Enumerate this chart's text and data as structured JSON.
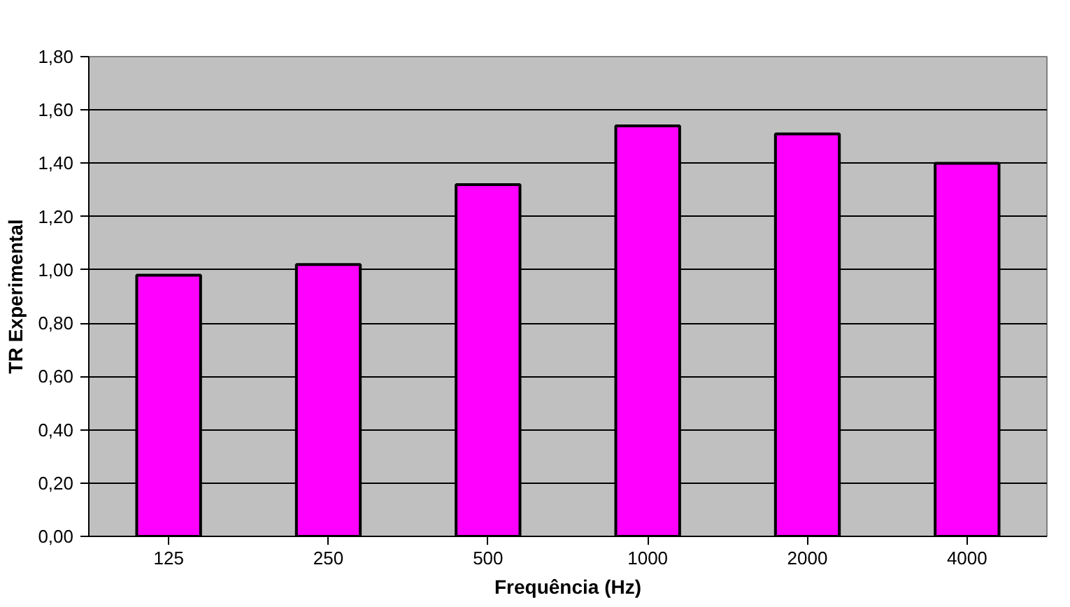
{
  "chart_data": {
    "type": "bar",
    "xlabel": "Frequência (Hz)",
    "ylabel": "TR Experimental",
    "categories": [
      "125",
      "250",
      "500",
      "1000",
      "2000",
      "4000"
    ],
    "values": [
      0.98,
      1.02,
      1.32,
      1.54,
      1.51,
      1.4
    ],
    "color": "#ff00ff",
    "ylim": [
      0,
      1.8
    ],
    "yticks": [
      {
        "value": 0,
        "label": "0,00"
      },
      {
        "value": 0.2,
        "label": "0,20"
      },
      {
        "value": 0.4,
        "label": "0,40"
      },
      {
        "value": 0.6,
        "label": "0,60"
      },
      {
        "value": 0.8,
        "label": "0,80"
      },
      {
        "value": 1.0,
        "label": "1,00"
      },
      {
        "value": 1.2,
        "label": "1,20"
      },
      {
        "value": 1.4,
        "label": "1,40"
      },
      {
        "value": 1.6,
        "label": "1,60"
      },
      {
        "value": 1.8,
        "label": "1,80"
      }
    ],
    "grid": "y"
  }
}
